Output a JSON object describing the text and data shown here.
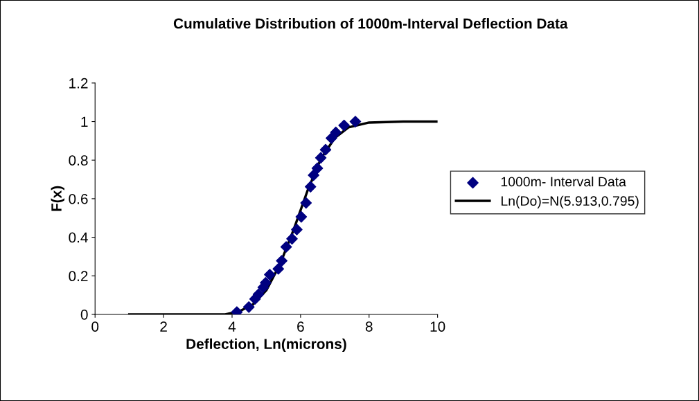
{
  "chart_data": {
    "type": "scatter",
    "title": "Cumulative Distribution of 1000m-Interval Deflection Data",
    "xlabel": "Deflection, Ln(microns)",
    "ylabel": "F(x)",
    "xlim": [
      0,
      10
    ],
    "xticks": [
      0,
      2,
      4,
      6,
      8,
      10
    ],
    "ylim": [
      0,
      1.2
    ],
    "yticks": [
      0,
      0.2,
      0.4,
      0.6,
      0.8,
      1,
      1.2
    ],
    "grid": false,
    "legend": "right",
    "series": [
      {
        "name": "1000m- Interval Data",
        "color": "#000080",
        "marker": "diamond",
        "x": [
          4.14,
          4.49,
          4.67,
          4.77,
          4.91,
          4.98,
          5.1,
          5.35,
          5.45,
          5.58,
          5.75,
          5.89,
          6.02,
          6.16,
          6.29,
          6.38,
          6.49,
          6.59,
          6.73,
          6.9,
          7.03,
          7.27,
          7.6
        ],
        "values": [
          0.012,
          0.038,
          0.08,
          0.104,
          0.14,
          0.164,
          0.206,
          0.236,
          0.278,
          0.35,
          0.392,
          0.44,
          0.506,
          0.578,
          0.662,
          0.722,
          0.758,
          0.812,
          0.854,
          0.914,
          0.944,
          0.98,
          1.0
        ]
      },
      {
        "name": "Ln(Do)=N(5.913,0.795)",
        "type": "line",
        "color": "#000000",
        "marker": "none",
        "line_style": "solid",
        "x": [
          1,
          2,
          3,
          3.8,
          4.2,
          4.6,
          5.0,
          5.4,
          5.8,
          6.2,
          6.6,
          7.0,
          7.4,
          8,
          9,
          10
        ],
        "values": [
          0,
          0,
          0,
          0,
          0.015,
          0.05,
          0.125,
          0.26,
          0.44,
          0.64,
          0.81,
          0.915,
          0.97,
          0.995,
          1,
          1
        ]
      }
    ]
  }
}
